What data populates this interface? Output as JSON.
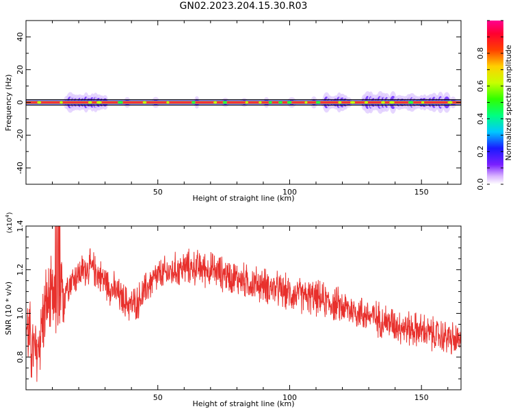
{
  "figure": {
    "title": "GN02.2023.204.15.30.R03"
  },
  "chart_data": [
    {
      "type": "heatmap",
      "title": "",
      "xlabel": "Height of straight line (km)",
      "ylabel": "Frequency (Hz)",
      "xlim": [
        0,
        165
      ],
      "ylim": [
        -50,
        50
      ],
      "x_ticks": [
        "50",
        "100",
        "150"
      ],
      "y_ticks": [
        "40",
        "20",
        "0",
        "-20",
        "-40"
      ],
      "colorbar": {
        "label": "Normalized spectral amplitude",
        "range": [
          0,
          1
        ],
        "ticks": [
          "0.0",
          "0.2",
          "0.4",
          "0.6",
          "0.8"
        ],
        "colormap": "rainbow (white-purple-blue-cyan-green-yellow-red-magenta)"
      },
      "signal": {
        "frequency_hz": 0,
        "bandwidth_hz": 1,
        "normalized_amplitude": 0.9,
        "broadened_regions_km": [
          [
            15,
            30
          ],
          [
            113,
            122
          ],
          [
            128,
            160
          ]
        ]
      },
      "grid": false
    },
    {
      "type": "line",
      "title": "",
      "xlabel": "Height of straight line (km)",
      "ylabel": "SNR (10 * v/v)",
      "y_multiplier": "(x10^4)",
      "xlim": [
        0,
        165
      ],
      "ylim": [
        0.65,
        1.4
      ],
      "x_ticks": [
        "50",
        "100",
        "150"
      ],
      "y_ticks": [
        "0.8",
        "1.0",
        "1.2",
        "1.4"
      ],
      "series": [
        {
          "color": "#e8302c",
          "style": "noisy",
          "x": [
            0,
            2,
            4,
            6,
            8,
            10,
            12,
            14,
            16,
            18,
            20,
            22,
            24,
            26,
            28,
            30,
            32,
            34,
            36,
            38,
            40,
            42,
            44,
            46,
            48,
            50,
            55,
            60,
            65,
            70,
            75,
            80,
            85,
            90,
            95,
            100,
            105,
            110,
            115,
            120,
            125,
            130,
            135,
            140,
            145,
            150,
            155,
            160,
            165
          ],
          "values": [
            0.95,
            0.85,
            0.8,
            0.95,
            1.05,
            1.05,
            0.98,
            1.1,
            1.14,
            1.16,
            1.18,
            1.2,
            1.21,
            1.2,
            1.17,
            1.15,
            1.12,
            1.1,
            1.07,
            1.05,
            1.04,
            1.05,
            1.08,
            1.12,
            1.15,
            1.17,
            1.19,
            1.21,
            1.21,
            1.2,
            1.18,
            1.16,
            1.14,
            1.13,
            1.11,
            1.09,
            1.08,
            1.07,
            1.05,
            1.03,
            1.01,
            0.99,
            0.97,
            0.95,
            0.93,
            0.92,
            0.9,
            0.89,
            0.86
          ]
        }
      ],
      "grid": false
    }
  ]
}
